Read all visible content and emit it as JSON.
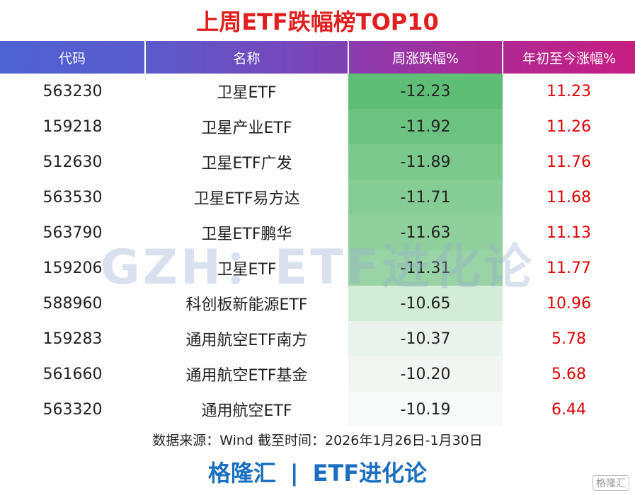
{
  "header": {
    "title": "上周ETF跌幅榜TOP10"
  },
  "watermark": "GZH：ETF进化论",
  "table": {
    "columns": [
      "代码",
      "名称",
      "周涨跌幅%",
      "年初至今涨幅%"
    ],
    "rows": [
      [
        "563230",
        "卫星ETF",
        "-12.23",
        "11.23"
      ],
      [
        "159218",
        "卫星产业ETF",
        "-11.92",
        "11.26"
      ],
      [
        "512630",
        "卫星ETF广发",
        "-11.89",
        "11.76"
      ],
      [
        "563530",
        "卫星ETF易方达",
        "-11.71",
        "11.68"
      ],
      [
        "563790",
        "卫星ETF鹏华",
        "-11.63",
        "11.13"
      ],
      [
        "159206",
        "卫星ETF",
        "-11.31",
        "11.77"
      ],
      [
        "588960",
        "科创板新能源ETF",
        "-10.65",
        "10.96"
      ],
      [
        "159283",
        "通用航空ETF南方",
        "-10.37",
        "5.78"
      ],
      [
        "561660",
        "通用航空ETF基金",
        "-10.20",
        "5.68"
      ],
      [
        "563320",
        "通用航空ETF",
        "-10.19",
        "6.44"
      ]
    ]
  },
  "source": "数据来源：Wind 截至时间：2026年1月26日-1月30日",
  "footer": {
    "brand": "格隆汇",
    "separator": "|",
    "account": "ETF进化论"
  },
  "logo": "格隆汇"
}
